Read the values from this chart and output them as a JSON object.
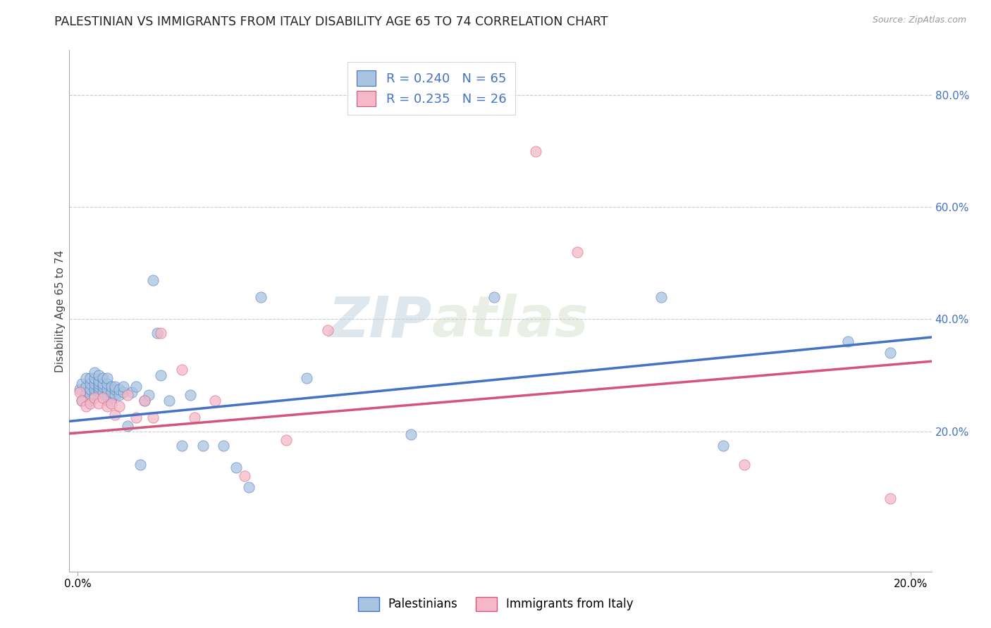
{
  "title": "PALESTINIAN VS IMMIGRANTS FROM ITALY DISABILITY AGE 65 TO 74 CORRELATION CHART",
  "source": "Source: ZipAtlas.com",
  "ylabel": "Disability Age 65 to 74",
  "xlim": [
    -0.002,
    0.205
  ],
  "ylim": [
    -0.05,
    0.88
  ],
  "blue_color": "#a8c4e0",
  "blue_line_color": "#4472c4",
  "pink_color": "#f4b8c8",
  "pink_line_color": "#d4547a",
  "blue_label": "Palestinians",
  "pink_label": "Immigrants from Italy",
  "R_blue": 0.24,
  "N_blue": 65,
  "R_pink": 0.235,
  "N_pink": 26,
  "legend_text_color": "#4472c4",
  "watermark_zip": "ZIP",
  "watermark_atlas": "atlas",
  "blue_scatter_x": [
    0.0005,
    0.001,
    0.001,
    0.002,
    0.002,
    0.002,
    0.003,
    0.003,
    0.003,
    0.003,
    0.003,
    0.004,
    0.004,
    0.004,
    0.004,
    0.004,
    0.005,
    0.005,
    0.005,
    0.005,
    0.005,
    0.005,
    0.006,
    0.006,
    0.006,
    0.006,
    0.007,
    0.007,
    0.007,
    0.007,
    0.007,
    0.008,
    0.008,
    0.008,
    0.009,
    0.009,
    0.009,
    0.01,
    0.01,
    0.011,
    0.011,
    0.012,
    0.013,
    0.014,
    0.015,
    0.016,
    0.017,
    0.018,
    0.019,
    0.02,
    0.022,
    0.025,
    0.027,
    0.03,
    0.035,
    0.038,
    0.041,
    0.044,
    0.055,
    0.08,
    0.1,
    0.14,
    0.155,
    0.185,
    0.195
  ],
  "blue_scatter_y": [
    0.275,
    0.255,
    0.285,
    0.27,
    0.28,
    0.295,
    0.255,
    0.265,
    0.275,
    0.285,
    0.295,
    0.265,
    0.275,
    0.285,
    0.295,
    0.305,
    0.27,
    0.275,
    0.28,
    0.285,
    0.29,
    0.3,
    0.27,
    0.28,
    0.285,
    0.295,
    0.255,
    0.265,
    0.275,
    0.285,
    0.295,
    0.26,
    0.27,
    0.28,
    0.265,
    0.275,
    0.28,
    0.265,
    0.275,
    0.27,
    0.28,
    0.21,
    0.27,
    0.28,
    0.14,
    0.255,
    0.265,
    0.47,
    0.375,
    0.3,
    0.255,
    0.175,
    0.265,
    0.175,
    0.175,
    0.135,
    0.1,
    0.44,
    0.295,
    0.195,
    0.44,
    0.44,
    0.175,
    0.36,
    0.34
  ],
  "pink_scatter_x": [
    0.0005,
    0.001,
    0.002,
    0.003,
    0.004,
    0.005,
    0.006,
    0.007,
    0.008,
    0.009,
    0.01,
    0.012,
    0.014,
    0.016,
    0.018,
    0.02,
    0.025,
    0.028,
    0.033,
    0.04,
    0.05,
    0.06,
    0.11,
    0.12,
    0.16,
    0.195
  ],
  "pink_scatter_y": [
    0.27,
    0.255,
    0.245,
    0.25,
    0.26,
    0.25,
    0.26,
    0.245,
    0.25,
    0.23,
    0.245,
    0.265,
    0.225,
    0.255,
    0.225,
    0.375,
    0.31,
    0.225,
    0.255,
    0.12,
    0.185,
    0.38,
    0.7,
    0.52,
    0.14,
    0.08
  ],
  "blue_trend_x": [
    -0.002,
    0.205
  ],
  "blue_trend_y": [
    0.218,
    0.368
  ],
  "pink_trend_x": [
    -0.002,
    0.205
  ],
  "pink_trend_y": [
    0.196,
    0.325
  ],
  "marker_size": 120,
  "bg_color": "#ffffff",
  "grid_color": "#cccccc",
  "title_fontsize": 12.5,
  "axis_label_fontsize": 11,
  "tick_fontsize": 11,
  "ytick_vals": [
    0.2,
    0.4,
    0.6,
    0.8
  ],
  "ytick_labels": [
    "20.0%",
    "40.0%",
    "60.0%",
    "80.0%"
  ],
  "xtick_vals": [
    0.0,
    0.2
  ],
  "xtick_labels": [
    "0.0%",
    "20.0%"
  ]
}
